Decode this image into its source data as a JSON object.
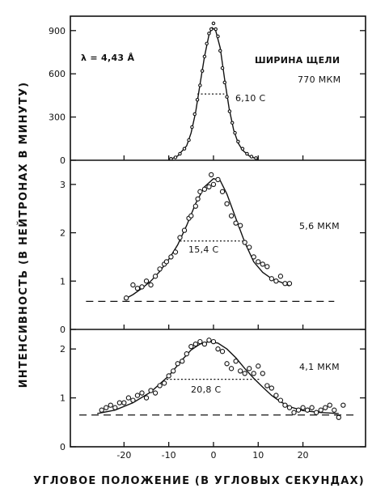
{
  "chart_data": {
    "type": "scatter",
    "xlabel": "УГЛОВОЕ ПОЛОЖЕНИЕ (В УГЛОВЫХ СЕКУНДАХ)",
    "ylabel": "ИНТЕНСИВНОСТЬ (В НЕЙТРОНАХ В МИНУТУ)",
    "x_ticks": [
      -20,
      -10,
      0,
      10,
      20
    ],
    "xlim": [
      -32,
      34
    ],
    "panels": [
      {
        "ylim": [
          0,
          1000
        ],
        "y_ticks": [
          0,
          300,
          600,
          900
        ],
        "annotations": [
          "λ = 4,43 Å",
          "ШИРИНА ЩЕЛИ",
          "770 МКМ"
        ],
        "width_label": "6,10 С",
        "width_level": 460,
        "width_x": [
          -3.6,
          2.4
        ],
        "baseline": null,
        "points": [
          [
            -9.5,
            10
          ],
          [
            -8.5,
            20
          ],
          [
            -7.5,
            45
          ],
          [
            -6.5,
            80
          ],
          [
            -5.5,
            140
          ],
          [
            -4.8,
            230
          ],
          [
            -4.2,
            320
          ],
          [
            -3.6,
            420
          ],
          [
            -3.0,
            520
          ],
          [
            -2.5,
            620
          ],
          [
            -2.0,
            720
          ],
          [
            -1.5,
            810
          ],
          [
            -1.0,
            880
          ],
          [
            -0.5,
            910
          ],
          [
            0,
            950
          ],
          [
            0.5,
            910
          ],
          [
            1.0,
            860
          ],
          [
            1.5,
            760
          ],
          [
            2.0,
            640
          ],
          [
            2.5,
            540
          ],
          [
            3.0,
            440
          ],
          [
            3.6,
            340
          ],
          [
            4.2,
            260
          ],
          [
            4.8,
            190
          ],
          [
            5.5,
            130
          ],
          [
            6.5,
            80
          ],
          [
            7.5,
            45
          ],
          [
            8.5,
            25
          ],
          [
            9.5,
            15
          ]
        ],
        "curve": [
          [
            -10,
            0
          ],
          [
            -8,
            30
          ],
          [
            -6,
            100
          ],
          [
            -5,
            190
          ],
          [
            -4,
            330
          ],
          [
            -3,
            530
          ],
          [
            -2,
            720
          ],
          [
            -1,
            870
          ],
          [
            -0.3,
            920
          ],
          [
            0.5,
            900
          ],
          [
            1.5,
            780
          ],
          [
            2.5,
            560
          ],
          [
            3.5,
            360
          ],
          [
            4.5,
            210
          ],
          [
            5.5,
            120
          ],
          [
            6.5,
            70
          ],
          [
            8,
            30
          ],
          [
            10,
            5
          ]
        ]
      },
      {
        "ylim": [
          0,
          3.5
        ],
        "y_ticks": [
          0,
          1,
          2,
          3
        ],
        "annotations": [
          "5,6 МКМ"
        ],
        "width_label": "15,4 С",
        "width_level": 1.83,
        "width_x": [
          -7.5,
          6.5
        ],
        "baseline": 0.58,
        "baseline_x": [
          -28.5,
          27
        ],
        "points": [
          [
            -19.5,
            0.65
          ],
          [
            -18,
            0.92
          ],
          [
            -17,
            0.85
          ],
          [
            -16,
            0.88
          ],
          [
            -15,
            1.0
          ],
          [
            -14,
            0.92
          ],
          [
            -13,
            1.1
          ],
          [
            -12,
            1.25
          ],
          [
            -11,
            1.35
          ],
          [
            -10.5,
            1.4
          ],
          [
            -9.5,
            1.5
          ],
          [
            -8.5,
            1.6
          ],
          [
            -7.5,
            1.9
          ],
          [
            -6.5,
            2.05
          ],
          [
            -5.5,
            2.3
          ],
          [
            -5,
            2.35
          ],
          [
            -4,
            2.55
          ],
          [
            -3.5,
            2.7
          ],
          [
            -3,
            2.85
          ],
          [
            -2,
            2.9
          ],
          [
            -1,
            2.95
          ],
          [
            0,
            3.0
          ],
          [
            -0.5,
            3.2
          ],
          [
            1,
            3.1
          ],
          [
            2,
            2.85
          ],
          [
            3,
            2.6
          ],
          [
            4,
            2.35
          ],
          [
            5,
            2.2
          ],
          [
            6,
            2.15
          ],
          [
            7,
            1.8
          ],
          [
            8,
            1.7
          ],
          [
            9,
            1.5
          ],
          [
            10,
            1.4
          ],
          [
            11,
            1.35
          ],
          [
            12,
            1.3
          ],
          [
            13,
            1.05
          ],
          [
            14,
            1.0
          ],
          [
            15,
            1.1
          ],
          [
            16,
            0.95
          ],
          [
            17,
            0.95
          ]
        ],
        "curve": [
          [
            -20,
            0.62
          ],
          [
            -18,
            0.72
          ],
          [
            -16,
            0.85
          ],
          [
            -14,
            1.0
          ],
          [
            -12,
            1.2
          ],
          [
            -10,
            1.45
          ],
          [
            -8,
            1.75
          ],
          [
            -6,
            2.15
          ],
          [
            -4,
            2.6
          ],
          [
            -2,
            2.95
          ],
          [
            0,
            3.12
          ],
          [
            1.5,
            3.08
          ],
          [
            3,
            2.8
          ],
          [
            5,
            2.3
          ],
          [
            7,
            1.8
          ],
          [
            9,
            1.4
          ],
          [
            11,
            1.18
          ],
          [
            13,
            1.05
          ],
          [
            15,
            0.98
          ],
          [
            17,
            0.9
          ]
        ]
      },
      {
        "ylim": [
          0,
          2.4
        ],
        "y_ticks": [
          0,
          1,
          2
        ],
        "annotations": [
          "4,1 МКМ"
        ],
        "width_label": "20,8 С",
        "width_level": 1.38,
        "width_x": [
          -10.5,
          10.3
        ],
        "baseline": 0.65,
        "baseline_x": [
          -30,
          32
        ],
        "points": [
          [
            -25,
            0.75
          ],
          [
            -24,
            0.8
          ],
          [
            -23,
            0.85
          ],
          [
            -22,
            0.8
          ],
          [
            -21,
            0.9
          ],
          [
            -20,
            0.9
          ],
          [
            -19,
            1.0
          ],
          [
            -18,
            0.95
          ],
          [
            -17,
            1.05
          ],
          [
            -16,
            1.1
          ],
          [
            -15,
            1.0
          ],
          [
            -14,
            1.15
          ],
          [
            -13,
            1.1
          ],
          [
            -12,
            1.25
          ],
          [
            -11,
            1.3
          ],
          [
            -10,
            1.45
          ],
          [
            -9,
            1.55
          ],
          [
            -8,
            1.7
          ],
          [
            -7,
            1.75
          ],
          [
            -6,
            1.9
          ],
          [
            -5,
            2.05
          ],
          [
            -4,
            2.1
          ],
          [
            -3,
            2.15
          ],
          [
            -2,
            2.1
          ],
          [
            -1,
            2.18
          ],
          [
            0,
            2.15
          ],
          [
            1,
            2.0
          ],
          [
            2,
            1.95
          ],
          [
            3,
            1.7
          ],
          [
            4,
            1.6
          ],
          [
            5,
            1.75
          ],
          [
            6,
            1.55
          ],
          [
            7,
            1.5
          ],
          [
            8,
            1.6
          ],
          [
            9,
            1.5
          ],
          [
            10,
            1.65
          ],
          [
            11,
            1.5
          ],
          [
            12,
            1.25
          ],
          [
            13,
            1.2
          ],
          [
            14,
            1.05
          ],
          [
            15,
            0.95
          ],
          [
            16,
            0.85
          ],
          [
            17,
            0.8
          ],
          [
            18,
            0.7
          ],
          [
            19,
            0.75
          ],
          [
            20,
            0.8
          ],
          [
            21,
            0.75
          ],
          [
            22,
            0.8
          ],
          [
            23,
            0.7
          ],
          [
            24,
            0.75
          ],
          [
            25,
            0.8
          ],
          [
            26,
            0.85
          ],
          [
            27,
            0.75
          ],
          [
            28,
            0.6
          ],
          [
            29,
            0.85
          ]
        ],
        "curve": [
          [
            -26,
            0.68
          ],
          [
            -22,
            0.75
          ],
          [
            -18,
            0.9
          ],
          [
            -14,
            1.12
          ],
          [
            -10,
            1.45
          ],
          [
            -7,
            1.78
          ],
          [
            -5,
            1.98
          ],
          [
            -3,
            2.1
          ],
          [
            -1,
            2.15
          ],
          [
            1,
            2.12
          ],
          [
            3,
            2.0
          ],
          [
            5,
            1.82
          ],
          [
            7,
            1.6
          ],
          [
            9,
            1.4
          ],
          [
            11,
            1.22
          ],
          [
            13,
            1.05
          ],
          [
            15,
            0.92
          ],
          [
            17,
            0.82
          ],
          [
            20,
            0.74
          ],
          [
            24,
            0.7
          ],
          [
            28,
            0.68
          ]
        ]
      }
    ]
  }
}
